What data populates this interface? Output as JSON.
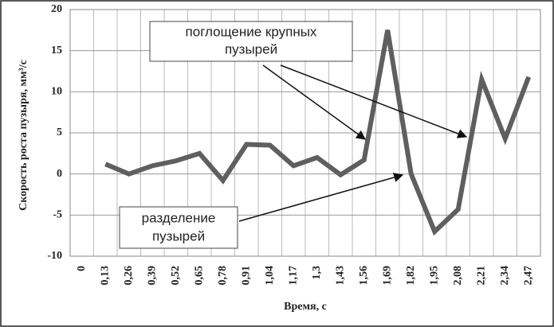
{
  "chart_data": {
    "type": "line",
    "x_label": "Время, с",
    "y_label": "Скорость роста пузыря, мм³/с",
    "categories": [
      "0",
      "0,13",
      "0,26",
      "0,39",
      "0,52",
      "0,65",
      "0,78",
      "0,91",
      "1,04",
      "1,17",
      "1,3",
      "1,43",
      "1,56",
      "1,69",
      "1,82",
      "1,95",
      "2,08",
      "2,21",
      "2,34",
      "2,47"
    ],
    "values": [
      null,
      1.2,
      0,
      1,
      1.6,
      2.5,
      -0.8,
      3.6,
      3.5,
      1,
      2,
      -0.1,
      1.7,
      17.5,
      0,
      -7,
      -4.3,
      11.5,
      4.3,
      11.8
    ],
    "color": "#5f5f5f",
    "ylim": [
      -10,
      20
    ],
    "yticks": [
      -10,
      -5,
      0,
      5,
      10,
      15,
      20
    ],
    "grid": true,
    "annotations": [
      {
        "lines": [
          "поглощение крупных",
          "пузырей"
        ]
      },
      {
        "lines": [
          "разделение",
          "пузырей"
        ]
      }
    ]
  }
}
